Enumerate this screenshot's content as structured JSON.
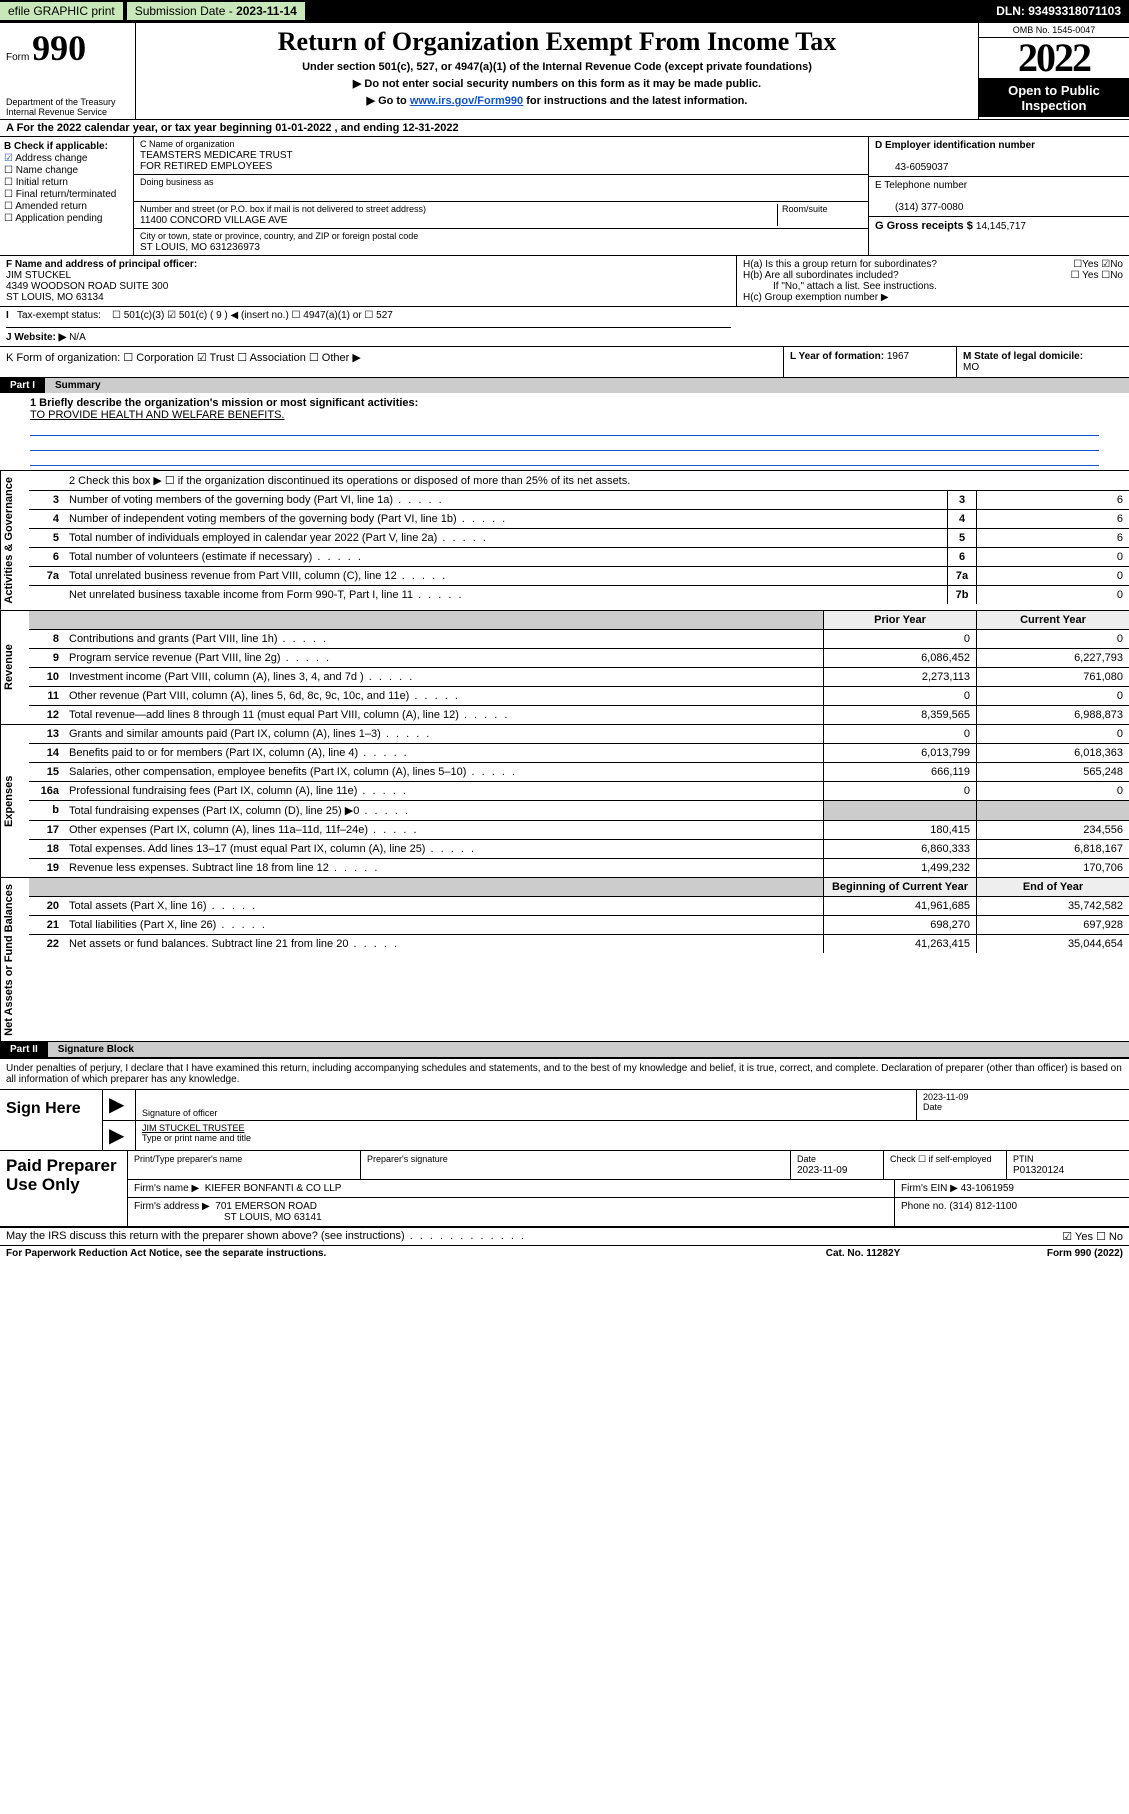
{
  "topbar": {
    "efile_label": "efile GRAPHIC print",
    "sub_label": "Submission Date - ",
    "sub_val": "2023-11-14",
    "dln_label": "DLN: ",
    "dln_val": "93493318071103"
  },
  "header": {
    "form_word": "Form",
    "form_num": "990",
    "dept": "Department of the Treasury\nInternal Revenue Service",
    "title": "Return of Organization Exempt From Income Tax",
    "sub1": "Under section 501(c), 527, or 4947(a)(1) of the Internal Revenue Code (except private foundations)",
    "sub2a": "▶ Do not enter social security numbers on this form as it may be made public.",
    "sub2b_pre": "▶ Go to ",
    "sub2b_link": "www.irs.gov/Form990",
    "sub2b_post": " for instructions and the latest information.",
    "omb": "OMB No. 1545-0047",
    "year": "2022",
    "public": "Open to Public Inspection"
  },
  "period": "A For the 2022 calendar year, or tax year beginning 01-01-2022       , and ending 12-31-2022",
  "B": {
    "label": "B Check if applicable:",
    "items": [
      {
        "t": "Address change",
        "c": true
      },
      {
        "t": "Name change",
        "c": false
      },
      {
        "t": "Initial return",
        "c": false
      },
      {
        "t": "Final return/terminated",
        "c": false
      },
      {
        "t": "Amended return",
        "c": false
      },
      {
        "t": "Application pending",
        "c": false
      }
    ]
  },
  "C": {
    "name_lbl": "C Name of organization",
    "name": "TEAMSTERS MEDICARE TRUST\nFOR RETIRED EMPLOYEES",
    "dba_lbl": "Doing business as",
    "dba": "",
    "addr_lbl": "Number and street (or P.O. box if mail is not delivered to street address)",
    "room_lbl": "Room/suite",
    "addr": "11400 CONCORD VILLAGE AVE",
    "city_lbl": "City or town, state or province, country, and ZIP or foreign postal code",
    "city": "ST LOUIS, MO  631236973"
  },
  "D": {
    "lbl": "D Employer identification number",
    "val": "43-6059037"
  },
  "E": {
    "lbl": "E Telephone number",
    "val": "(314) 377-0080"
  },
  "G": {
    "lbl": "G Gross receipts $ ",
    "val": "14,145,717"
  },
  "F": {
    "lbl": "F Name and address of principal officer:",
    "name": "JIM STUCKEL",
    "addr1": "4349 WOODSON ROAD SUITE 300",
    "addr2": "ST LOUIS, MO  63134"
  },
  "H": {
    "ha": "H(a)  Is this a group return for subordinates?",
    "ha_yn": "☐Yes  ☑No",
    "hb": "H(b)  Are all subordinates included?",
    "hb_yn": "☐ Yes  ☐No",
    "hb_note": "If \"No,\" attach a list. See instructions.",
    "hc": "H(c)  Group exemption number ▶"
  },
  "I": {
    "lbl": "Tax-exempt status:",
    "opts": "☐ 501(c)(3)   ☑ 501(c) ( 9 ) ◀ (insert no.)    ☐ 4947(a)(1) or   ☐ 527"
  },
  "J": {
    "lbl": "J   Website: ▶ ",
    "val": "N/A"
  },
  "K": {
    "lbl": "K Form of organization:  ☐ Corporation  ☑ Trust  ☐ Association  ☐ Other ▶"
  },
  "L": {
    "lbl": "L Year of formation: ",
    "val": "1967"
  },
  "M": {
    "lbl": "M State of legal domicile:",
    "val": "MO"
  },
  "part1": {
    "label": "Part I",
    "title": "Summary",
    "mission_lbl": "1   Briefly describe the organization's mission or most significant activities:",
    "mission": "TO PROVIDE HEALTH AND WELFARE BENEFITS.",
    "line2": "2   Check this box ▶ ☐  if the organization discontinued its operations or disposed of more than 25% of its net assets."
  },
  "sections": [
    {
      "label": "Activities & Governance",
      "rows": [
        {
          "n": "3",
          "d": "Number of voting members of the governing body (Part VI, line 1a)",
          "box": "3",
          "v1": "",
          "v2": "6",
          "boxonly": true
        },
        {
          "n": "4",
          "d": "Number of independent voting members of the governing body (Part VI, line 1b)",
          "box": "4",
          "v1": "",
          "v2": "6",
          "boxonly": true
        },
        {
          "n": "5",
          "d": "Total number of individuals employed in calendar year 2022 (Part V, line 2a)",
          "box": "5",
          "v1": "",
          "v2": "6",
          "boxonly": true
        },
        {
          "n": "6",
          "d": "Total number of volunteers (estimate if necessary)",
          "box": "6",
          "v1": "",
          "v2": "0",
          "boxonly": true
        },
        {
          "n": "7a",
          "d": "Total unrelated business revenue from Part VIII, column (C), line 12",
          "box": "7a",
          "v1": "",
          "v2": "0",
          "boxonly": true
        },
        {
          "n": "",
          "d": "Net unrelated business taxable income from Form 990-T, Part I, line 11",
          "box": "7b",
          "v1": "",
          "v2": "0",
          "boxonly": true
        }
      ]
    },
    {
      "label": "Revenue",
      "head": {
        "v1": "Prior Year",
        "v2": "Current Year"
      },
      "rows": [
        {
          "n": "8",
          "d": "Contributions and grants (Part VIII, line 1h)",
          "v1": "0",
          "v2": "0"
        },
        {
          "n": "9",
          "d": "Program service revenue (Part VIII, line 2g)",
          "v1": "6,086,452",
          "v2": "6,227,793"
        },
        {
          "n": "10",
          "d": "Investment income (Part VIII, column (A), lines 3, 4, and 7d )",
          "v1": "2,273,113",
          "v2": "761,080"
        },
        {
          "n": "11",
          "d": "Other revenue (Part VIII, column (A), lines 5, 6d, 8c, 9c, 10c, and 11e)",
          "v1": "0",
          "v2": "0"
        },
        {
          "n": "12",
          "d": "Total revenue—add lines 8 through 11 (must equal Part VIII, column (A), line 12)",
          "v1": "8,359,565",
          "v2": "6,988,873"
        }
      ]
    },
    {
      "label": "Expenses",
      "rows": [
        {
          "n": "13",
          "d": "Grants and similar amounts paid (Part IX, column (A), lines 1–3)",
          "v1": "0",
          "v2": "0"
        },
        {
          "n": "14",
          "d": "Benefits paid to or for members (Part IX, column (A), line 4)",
          "v1": "6,013,799",
          "v2": "6,018,363"
        },
        {
          "n": "15",
          "d": "Salaries, other compensation, employee benefits (Part IX, column (A), lines 5–10)",
          "v1": "666,119",
          "v2": "565,248"
        },
        {
          "n": "16a",
          "d": "Professional fundraising fees (Part IX, column (A), line 11e)",
          "v1": "0",
          "v2": "0"
        },
        {
          "n": "b",
          "d": "Total fundraising expenses (Part IX, column (D), line 25) ▶0",
          "v1": "",
          "v2": "",
          "shade": true
        },
        {
          "n": "17",
          "d": "Other expenses (Part IX, column (A), lines 11a–11d, 11f–24e)",
          "v1": "180,415",
          "v2": "234,556"
        },
        {
          "n": "18",
          "d": "Total expenses. Add lines 13–17 (must equal Part IX, column (A), line 25)",
          "v1": "6,860,333",
          "v2": "6,818,167"
        },
        {
          "n": "19",
          "d": "Revenue less expenses. Subtract line 18 from line 12",
          "v1": "1,499,232",
          "v2": "170,706"
        }
      ]
    },
    {
      "label": "Net Assets or Fund Balances",
      "head": {
        "v1": "Beginning of Current Year",
        "v2": "End of Year"
      },
      "rows": [
        {
          "n": "20",
          "d": "Total assets (Part X, line 16)",
          "v1": "41,961,685",
          "v2": "35,742,582"
        },
        {
          "n": "21",
          "d": "Total liabilities (Part X, line 26)",
          "v1": "698,270",
          "v2": "697,928"
        },
        {
          "n": "22",
          "d": "Net assets or fund balances. Subtract line 21 from line 20",
          "v1": "41,263,415",
          "v2": "35,044,654"
        }
      ]
    }
  ],
  "part2": {
    "label": "Part II",
    "title": "Signature Block"
  },
  "sig_intro": "Under penalties of perjury, I declare that I have examined this return, including accompanying schedules and statements, and to the best of my knowledge and belief, it is true, correct, and complete. Declaration of preparer (other than officer) is based on all information of which preparer has any knowledge.",
  "sign": {
    "label": "Sign Here",
    "sig_lbl": "Signature of officer",
    "date_lbl": "Date",
    "date": "2023-11-09",
    "name": "JIM STUCKEL TRUSTEE",
    "name_lbl": "Type or print name and title"
  },
  "paid": {
    "label": "Paid Preparer Use Only",
    "h_name": "Print/Type preparer's name",
    "h_sig": "Preparer's signature",
    "h_date": "Date",
    "date": "2023-11-09",
    "h_chk": "Check ☐ if self-employed",
    "h_ptin": "PTIN",
    "ptin": "P01320124",
    "firm_lbl": "Firm's name     ▶",
    "firm": "KIEFER BONFANTI & CO LLP",
    "ein_lbl": "Firm's EIN ▶ ",
    "ein": "43-1061959",
    "addr_lbl": "Firm's address ▶",
    "addr1": "701 EMERSON ROAD",
    "addr2": "ST LOUIS, MO  63141",
    "phone_lbl": "Phone no. ",
    "phone": "(314) 812-1100"
  },
  "discuss": {
    "q": "May the IRS discuss this return with the preparer shown above? (see instructions)",
    "yn": "☑ Yes  ☐ No"
  },
  "footer": {
    "left": "For Paperwork Reduction Act Notice, see the separate instructions.",
    "mid": "Cat. No. 11282Y",
    "right": "Form 990 (2022)"
  }
}
